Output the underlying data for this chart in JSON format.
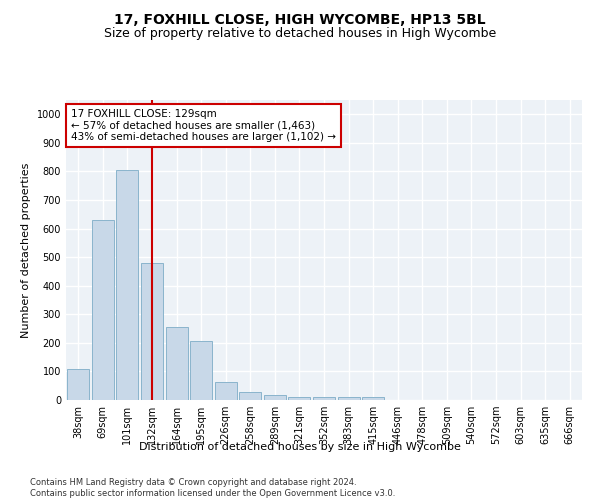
{
  "title": "17, FOXHILL CLOSE, HIGH WYCOMBE, HP13 5BL",
  "subtitle": "Size of property relative to detached houses in High Wycombe",
  "xlabel": "Distribution of detached houses by size in High Wycombe",
  "ylabel": "Number of detached properties",
  "categories": [
    "38sqm",
    "69sqm",
    "101sqm",
    "132sqm",
    "164sqm",
    "195sqm",
    "226sqm",
    "258sqm",
    "289sqm",
    "321sqm",
    "352sqm",
    "383sqm",
    "415sqm",
    "446sqm",
    "478sqm",
    "509sqm",
    "540sqm",
    "572sqm",
    "603sqm",
    "635sqm",
    "666sqm"
  ],
  "values": [
    110,
    630,
    805,
    480,
    255,
    205,
    63,
    28,
    18,
    10,
    10,
    10,
    10,
    0,
    0,
    0,
    0,
    0,
    0,
    0,
    0
  ],
  "bar_color": "#c8d8e8",
  "bar_edge_color": "#8ab4cc",
  "vline_x_index": 3,
  "vline_color": "#cc0000",
  "annotation_text": "17 FOXHILL CLOSE: 129sqm\n← 57% of detached houses are smaller (1,463)\n43% of semi-detached houses are larger (1,102) →",
  "annotation_box_color": "#ffffff",
  "annotation_box_edge": "#cc0000",
  "ylim": [
    0,
    1050
  ],
  "yticks": [
    0,
    100,
    200,
    300,
    400,
    500,
    600,
    700,
    800,
    900,
    1000
  ],
  "footnote": "Contains HM Land Registry data © Crown copyright and database right 2024.\nContains public sector information licensed under the Open Government Licence v3.0.",
  "bg_color": "#ffffff",
  "plot_bg_color": "#edf2f7",
  "grid_color": "#ffffff",
  "title_fontsize": 10,
  "subtitle_fontsize": 9,
  "axis_label_fontsize": 8,
  "tick_fontsize": 7,
  "annotation_fontsize": 7.5,
  "footnote_fontsize": 6
}
